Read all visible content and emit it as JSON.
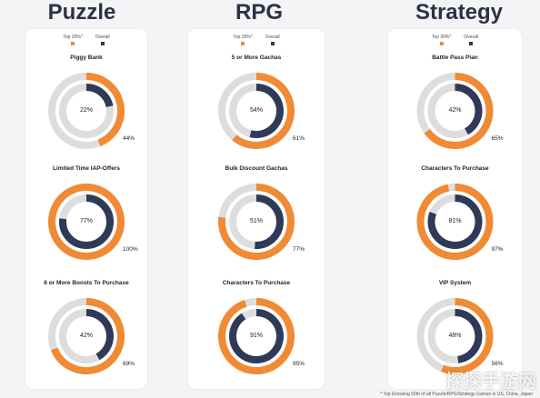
{
  "legend": {
    "top_label": "Top 20%*",
    "overall_label": "Overall"
  },
  "colors": {
    "orange": "#f08a34",
    "navy": "#2e3a56",
    "grey": "#dddddd"
  },
  "footnote": "* Top Grossing 50th of all Puzzle/RPG/Strategy Games in US, China, Japan",
  "watermark": "探探手游网",
  "chart_data": [
    {
      "type": "donut",
      "genre": "Puzzle",
      "charts": [
        {
          "title": "Piggy Bank",
          "top20_pct": 44,
          "overall_pct": 22,
          "top20_label": "44%",
          "overall_label": "22%"
        },
        {
          "title": "Limited Time IAP-Offers",
          "top20_pct": 100,
          "overall_pct": 77,
          "top20_label": "100%",
          "overall_label": "77%"
        },
        {
          "title": "6 or More Boosts To Purchase",
          "top20_pct": 69,
          "overall_pct": 42,
          "top20_label": "69%",
          "overall_label": "42%"
        }
      ]
    },
    {
      "type": "donut",
      "genre": "RPG",
      "charts": [
        {
          "title": "5 or More Gachas",
          "top20_pct": 61,
          "overall_pct": 54,
          "top20_label": "61%",
          "overall_label": "54%"
        },
        {
          "title": "Bulk Discount Gachas",
          "top20_pct": 77,
          "overall_pct": 51,
          "top20_label": "77%",
          "overall_label": "51%"
        },
        {
          "title": "Characters To Purchase",
          "top20_pct": 95,
          "overall_pct": 91,
          "top20_label": "95%",
          "overall_label": "91%"
        }
      ]
    },
    {
      "type": "donut",
      "genre": "Strategy",
      "charts": [
        {
          "title": "Battle Pass Plan",
          "top20_pct": 65,
          "overall_pct": 42,
          "top20_label": "65%",
          "overall_label": "42%"
        },
        {
          "title": "Characters To Purchase",
          "top20_pct": 97,
          "overall_pct": 81,
          "top20_label": "97%",
          "overall_label": "81%"
        },
        {
          "title": "VIP System",
          "top20_pct": 56,
          "overall_pct": 48,
          "top20_label": "56%",
          "overall_label": "48%"
        }
      ]
    }
  ]
}
